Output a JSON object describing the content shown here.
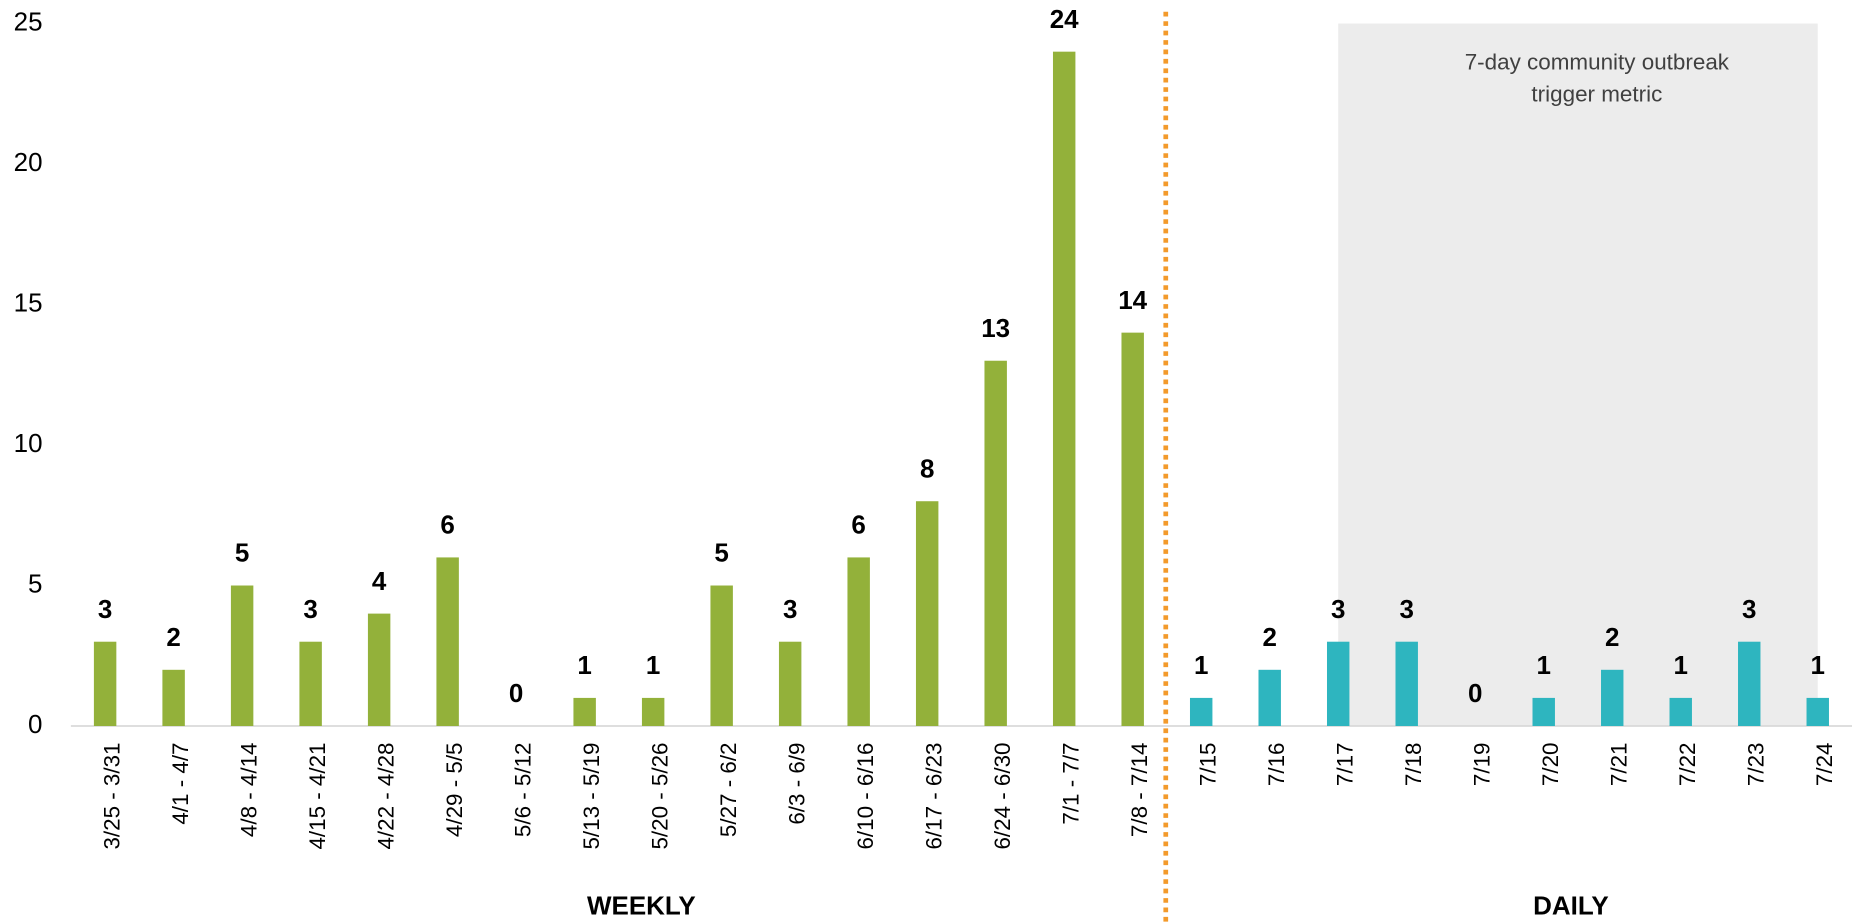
{
  "chart_data": {
    "type": "bar",
    "categories": [
      "3/25 - 3/31",
      "4/1 - 4/7",
      "4/8 - 4/14",
      "4/15 - 4/21",
      "4/22 - 4/28",
      "4/29 - 5/5",
      "5/6 - 5/12",
      "5/13 - 5/19",
      "5/20 - 5/26",
      "5/27 - 6/2",
      "6/3 - 6/9",
      "6/10 - 6/16",
      "6/17 - 6/23",
      "6/24 - 6/30",
      "7/1 - 7/7",
      "7/8 - 7/14",
      "7/15",
      "7/16",
      "7/17",
      "7/18",
      "7/19",
      "7/20",
      "7/21",
      "7/22",
      "7/23",
      "7/24"
    ],
    "series": [
      {
        "name": "WEEKLY",
        "color": "#93b13a",
        "values": [
          3,
          2,
          5,
          3,
          4,
          6,
          0,
          1,
          1,
          5,
          3,
          6,
          8,
          13,
          24,
          14,
          null,
          null,
          null,
          null,
          null,
          null,
          null,
          null,
          null,
          null
        ]
      },
      {
        "name": "DAILY",
        "color": "#2eb5bf",
        "values": [
          null,
          null,
          null,
          null,
          null,
          null,
          null,
          null,
          null,
          null,
          null,
          null,
          null,
          null,
          null,
          null,
          1,
          2,
          3,
          3,
          0,
          1,
          2,
          1,
          3,
          1
        ]
      }
    ],
    "annotation": [
      "7-day community outbreak",
      "trigger metric"
    ],
    "ylim": [
      0,
      25
    ],
    "yticks": [
      0,
      5,
      10,
      15,
      20,
      25
    ],
    "grid": false
  }
}
